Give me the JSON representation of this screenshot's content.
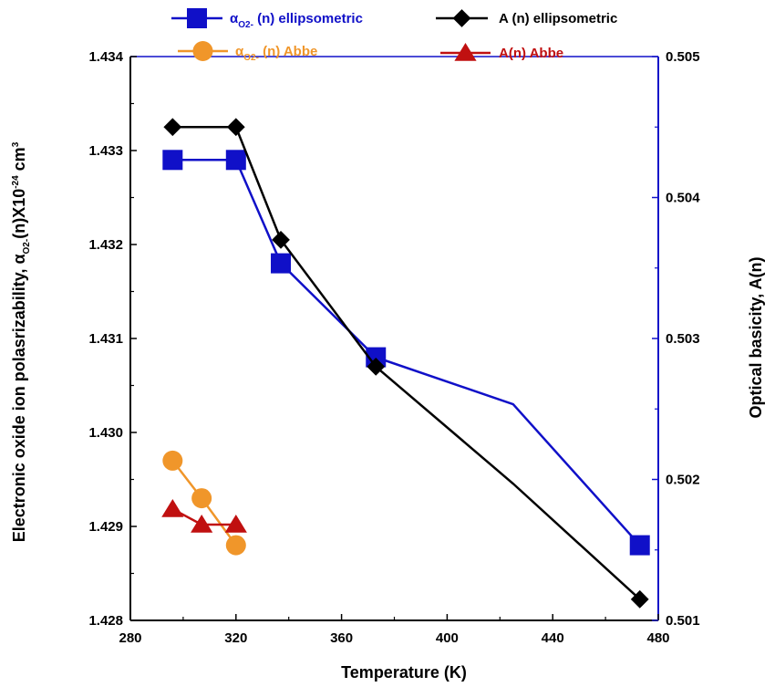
{
  "chart_data": {
    "type": "line",
    "xlabel": "Temperature (K)",
    "ylabel_left": {
      "main": "Electronic oxide ion polasrizability, α",
      "sub": "O2-",
      "mid": "(n)X10",
      "sup": "-24",
      "tail": " cm",
      "sup2": "3"
    },
    "ylabel_right": "Optical basicity, A(n)",
    "xlim": [
      280,
      480
    ],
    "ylim_left": [
      1.428,
      1.434
    ],
    "ylim_right": [
      0.501,
      0.505
    ],
    "x_ticks": [
      "280",
      "320",
      "360",
      "400",
      "440",
      "480"
    ],
    "x_tick_values": [
      280,
      320,
      360,
      400,
      440,
      480
    ],
    "y_left_ticks": [
      "1.428",
      "1.429",
      "1.430",
      "1.431",
      "1.432",
      "1.433",
      "1.434"
    ],
    "y_left_tick_values": [
      1.428,
      1.429,
      1.43,
      1.431,
      1.432,
      1.433,
      1.434
    ],
    "y_right_ticks": [
      "0.501",
      "0.502",
      "0.503",
      "0.504",
      "0.505"
    ],
    "y_right_tick_values": [
      0.501,
      0.502,
      0.503,
      0.504,
      0.505
    ],
    "grid": false,
    "legend_position": "top",
    "series": [
      {
        "name": {
          "pre": "α",
          "sub": "O2-",
          "post": " (n)  ellipsometric"
        },
        "axis": "left",
        "color": "#1010c8",
        "marker": "square",
        "x": [
          296,
          320,
          337,
          373,
          425,
          473
        ],
        "y": [
          1.4329,
          1.4329,
          1.4318,
          1.4308,
          1.4303,
          1.4288
        ],
        "marker_mask": [
          true,
          true,
          true,
          true,
          false,
          true
        ]
      },
      {
        "name": {
          "pre": "α",
          "sub": "O2-",
          "post": " (n)  Abbe"
        },
        "axis": "left",
        "color": "#f0962a",
        "marker": "circle",
        "x": [
          296,
          307,
          320
        ],
        "y": [
          1.4297,
          1.4293,
          1.4288
        ],
        "marker_mask": [
          true,
          true,
          true
        ]
      },
      {
        "name": {
          "pre": "A (n)   ellipsometric",
          "sub": "",
          "post": ""
        },
        "axis": "right",
        "color": "#000000",
        "marker": "diamond",
        "x": [
          296,
          320,
          337,
          373,
          425,
          473
        ],
        "y": [
          0.5045,
          0.5045,
          0.5037,
          0.5028,
          0.50197,
          0.50115
        ],
        "marker_mask": [
          true,
          true,
          true,
          true,
          false,
          true
        ]
      },
      {
        "name": {
          "pre": "A(n)  Abbe",
          "sub": "",
          "post": ""
        },
        "axis": "right",
        "color": "#c01010",
        "marker": "triangle",
        "x": [
          296,
          307,
          320
        ],
        "y": [
          0.50179,
          0.50168,
          0.50168
        ],
        "marker_mask": [
          true,
          true,
          true
        ]
      }
    ]
  }
}
